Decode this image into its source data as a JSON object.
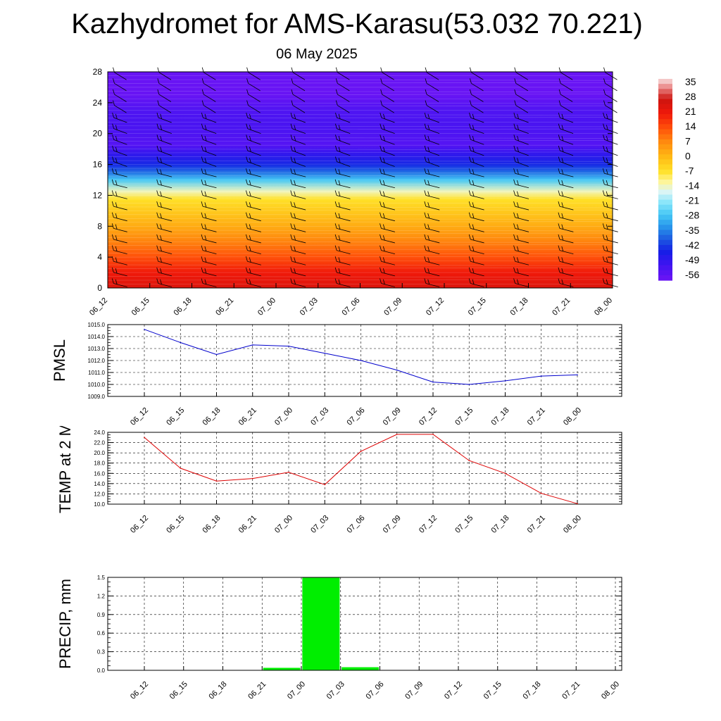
{
  "header": {
    "title": "Kazhydromet for AMS-Karasu(53.032 70.221)",
    "subtitle": "06 May 2025"
  },
  "chart_data": [
    {
      "type": "heatmap",
      "name": "temperature-cross-section",
      "title": "",
      "xlabel": "",
      "ylabel": "",
      "x_ticks": [
        "06_12",
        "06_15",
        "06_18",
        "06_21",
        "07_00",
        "07_03",
        "07_06",
        "07_09",
        "07_12",
        "07_15",
        "07_18",
        "07_21",
        "08_00"
      ],
      "y_ticks": [
        "0",
        "4",
        "8",
        "12",
        "16",
        "20",
        "24",
        "28"
      ],
      "ylim": [
        0,
        28
      ],
      "y_profile": [
        {
          "y": 0,
          "v": 25
        },
        {
          "y": 2,
          "v": 21
        },
        {
          "y": 4,
          "v": 14
        },
        {
          "y": 6,
          "v": 8
        },
        {
          "y": 8,
          "v": 2
        },
        {
          "y": 10,
          "v": -3
        },
        {
          "y": 11.5,
          "v": -7
        },
        {
          "y": 12.5,
          "v": -14
        },
        {
          "y": 14,
          "v": -28
        },
        {
          "y": 15,
          "v": -38
        },
        {
          "y": 16,
          "v": -45
        },
        {
          "y": 17.5,
          "v": -51
        },
        {
          "y": 18.5,
          "v": -56
        },
        {
          "y": 21,
          "v": -54
        },
        {
          "y": 23,
          "v": -55
        },
        {
          "y": 25,
          "v": -59
        },
        {
          "y": 28,
          "v": -59
        }
      ],
      "colorbar": {
        "labels": [
          "35",
          "28",
          "21",
          "14",
          "7",
          "0",
          "-7",
          "-14",
          "-21",
          "-28",
          "-35",
          "-42",
          "-49",
          "-56"
        ],
        "min": -60,
        "max": 38
      },
      "wind_barbs": true
    },
    {
      "type": "line",
      "name": "pmsl",
      "ylabel": "PMSL",
      "categories": [
        "06_12",
        "06_15",
        "06_18",
        "06_21",
        "07_00",
        "07_03",
        "07_06",
        "07_09",
        "07_12",
        "07_15",
        "07_18",
        "07_21",
        "08_00"
      ],
      "values": [
        1014.6,
        1013.5,
        1012.5,
        1013.3,
        1013.2,
        1012.6,
        1012.0,
        1011.2,
        1010.2,
        1010.0,
        1010.3,
        1010.7,
        1010.8
      ],
      "ylim": [
        1009.0,
        1015.0
      ],
      "y_ticks": [
        "1015.0",
        "1014.0",
        "1013.0",
        "1012.0",
        "1011.0",
        "1010.0",
        "1009.0"
      ],
      "color": "#0000cc",
      "grid": true
    },
    {
      "type": "line",
      "name": "temp-2m",
      "ylabel": "TEMP at 2 M",
      "categories": [
        "06_12",
        "06_15",
        "06_18",
        "06_21",
        "07_00",
        "07_03",
        "07_06",
        "07_09",
        "07_12",
        "07_15",
        "07_18",
        "07_21",
        "08_00"
      ],
      "values": [
        23.0,
        17.0,
        14.5,
        15.0,
        16.2,
        13.8,
        20.3,
        23.6,
        23.6,
        18.5,
        16.0,
        12.1,
        10.1
      ],
      "ylim": [
        10.0,
        24.0
      ],
      "y_ticks": [
        "24.0",
        "22.0",
        "20.0",
        "18.0",
        "16.0",
        "14.0",
        "12.0",
        "10.0"
      ],
      "color": "#dd0000",
      "grid": true
    },
    {
      "type": "bar",
      "name": "precip",
      "ylabel": "PRECIP, mm",
      "categories": [
        "06_12",
        "06_15",
        "06_18",
        "06_21",
        "07_00",
        "07_03",
        "07_06",
        "07_09",
        "07_12",
        "07_15",
        "07_18",
        "07_21",
        "08_00"
      ],
      "values": [
        0,
        0,
        0,
        0,
        0.04,
        1.5,
        0.05,
        0,
        0,
        0,
        0,
        0,
        0
      ],
      "ylim": [
        0,
        1.5
      ],
      "y_ticks": [
        "1.5",
        "1.2",
        "0.9",
        "0.6",
        "0.3",
        "0.0"
      ],
      "color": "#00ee00",
      "grid": true
    }
  ]
}
